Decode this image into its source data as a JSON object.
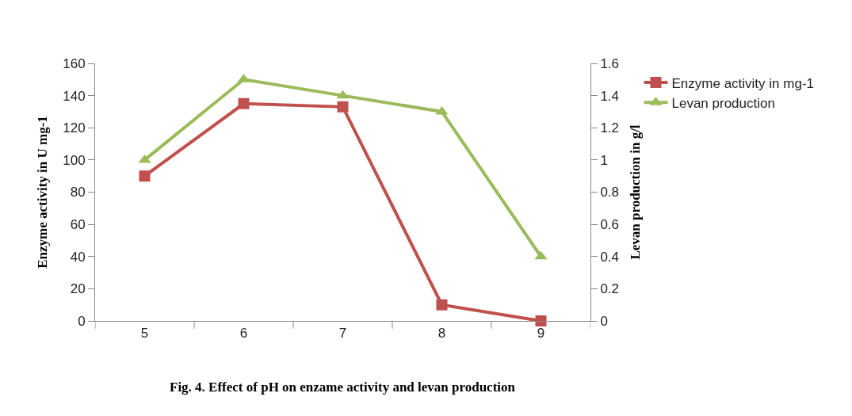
{
  "chart_data": {
    "type": "line",
    "ylabel": "Enzyme activity in U mg-1",
    "y2label": "Levan production in g/l",
    "categories": [
      "5",
      "6",
      "7",
      "8",
      "9"
    ],
    "series": [
      {
        "name": "Enzyme activity in mg-1",
        "color": "#c0504d",
        "marker": "square",
        "values": [
          90,
          135,
          133,
          10,
          0
        ]
      },
      {
        "name": "Levan production",
        "color": "#9bbb59",
        "marker": "triangle",
        "axis": "y2",
        "values": [
          1.0,
          1.5,
          1.4,
          1.3,
          0.4
        ]
      }
    ],
    "ylim": [
      0,
      160
    ],
    "yticks": [
      0,
      20,
      40,
      60,
      80,
      100,
      120,
      140,
      160
    ],
    "y2lim": [
      0,
      1.6
    ],
    "y2ticks": [
      0,
      0.2,
      0.4,
      0.6,
      0.8,
      1,
      1.2,
      1.4,
      1.6
    ],
    "grid": false,
    "legend": "right",
    "line_style": "solid",
    "annotations": [
      "Fig. 4. Effect of pH on enzame activity and levan production"
    ]
  }
}
